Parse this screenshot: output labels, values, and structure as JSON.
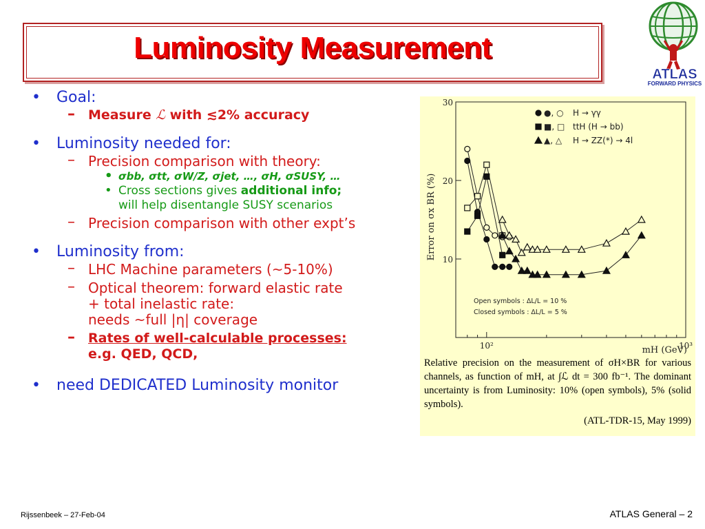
{
  "title": "Luminosity Measurement",
  "logo": {
    "text": "ATLAS",
    "subtext": "FORWARD PHYSICS"
  },
  "bullets": {
    "goal": {
      "label": "Goal:",
      "sub": {
        "prefix": "Measure ",
        "symbol": "ℒ",
        "mid": " with ",
        "suffix": "≲2% accuracy"
      }
    },
    "needed": {
      "label": "Luminosity needed for:",
      "theory": "Precision comparison with theory:",
      "sigmas": "σbb, σtt, σW/Z, σjet, …, σH, σSUSY, …",
      "cross_prefix": "Cross sections gives ",
      "cross_bold": "additional info;",
      "cross_line2": "will help disentangle SUSY scenarios",
      "other": "Precision comparison with other expt’s"
    },
    "from": {
      "label": "Luminosity from:",
      "lhc": "LHC Machine parameters (~5-10%)",
      "optical1": "Optical theorem: forward elastic rate",
      "optical2": "+ total inelastic rate:",
      "optical3": "needs ~full |η| coverage",
      "rates1": "Rates of well-calculable processes:",
      "rates2": "e.g. QED, QCD,"
    },
    "dedicated": "need DEDICATED Luminosity monitor"
  },
  "chart_data": {
    "type": "line",
    "ylabel": "Error on σx BR (%)",
    "xlabel": "mH (GeV)",
    "ylim": [
      0,
      30
    ],
    "y_ticks": [
      10,
      20,
      30
    ],
    "x_ticks": [
      "10²",
      "10³"
    ],
    "x_scale": "log",
    "legend": [
      {
        "symbols": "●, ○",
        "label": "H → γγ"
      },
      {
        "symbols": "■, □",
        "label": "ttH (H → bb)"
      },
      {
        "symbols": "▲, △",
        "label": "H → ZZ(*) → 4l"
      }
    ],
    "note_open": "Open symbols   :  ΔL/L = 10 %",
    "note_closed": "Closed symbols :  ΔL/L = 5 %",
    "series": [
      {
        "name": "H → γγ",
        "symbol": "circle",
        "open": true,
        "x": [
          80,
          90,
          100,
          110,
          120,
          130
        ],
        "y": [
          24.0,
          18.0,
          14.0,
          13.0,
          12.8,
          12.8
        ]
      },
      {
        "name": "H → γγ",
        "symbol": "circle",
        "open": false,
        "x": [
          80,
          90,
          100,
          110,
          120,
          130
        ],
        "y": [
          22.5,
          16.0,
          12.5,
          9.0,
          9.0,
          9.0
        ]
      },
      {
        "name": "ttH (H → bb)",
        "symbol": "square",
        "open": true,
        "x": [
          80,
          90,
          100,
          120
        ],
        "y": [
          16.5,
          18.0,
          22.0,
          13.0
        ]
      },
      {
        "name": "ttH (H → bb)",
        "symbol": "square",
        "open": false,
        "x": [
          80,
          90,
          100,
          120
        ],
        "y": [
          13.5,
          15.5,
          20.5,
          10.5
        ]
      },
      {
        "name": "H → ZZ(*) → 4l",
        "symbol": "triangle",
        "open": true,
        "x": [
          120,
          130,
          140,
          150,
          160,
          170,
          180,
          200,
          250,
          300,
          400,
          500,
          600
        ],
        "y": [
          15.0,
          13.0,
          12.5,
          10.8,
          11.5,
          11.2,
          11.2,
          11.2,
          11.2,
          11.2,
          12.0,
          13.5,
          15.0
        ]
      },
      {
        "name": "H → ZZ(*) → 4l",
        "symbol": "triangle",
        "open": false,
        "x": [
          120,
          130,
          140,
          150,
          160,
          170,
          180,
          200,
          250,
          300,
          400,
          500,
          600
        ],
        "y": [
          13.0,
          11.0,
          10.0,
          8.5,
          8.5,
          8.0,
          8.0,
          8.0,
          8.0,
          8.0,
          8.5,
          10.5,
          13.0
        ]
      }
    ]
  },
  "caption": {
    "text": "Relative precision on the measurement of σH×BR for various channels, as function of mH, at ∫ℒ dt = 300 fb⁻¹. The dominant uncertainty is from Luminosity: 10% (open symbols), 5% (solid symbols).",
    "source": "(ATL-TDR-15, May 1999)"
  },
  "footer": {
    "left": "Rijssenbeek – 27-Feb-04",
    "right": "ATLAS General – 2"
  }
}
